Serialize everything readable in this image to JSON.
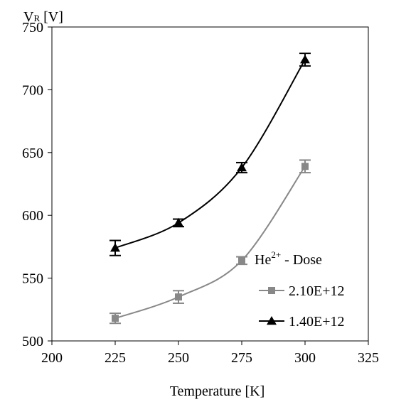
{
  "chart_data": {
    "type": "line",
    "title": "",
    "ylabel": "V",
    "ylabel_sub": "R",
    "ylabel_unit": "[V]",
    "xlabel": "Temperature [K]",
    "xlim": [
      200,
      325
    ],
    "ylim": [
      500,
      750
    ],
    "x_ticks": [
      200,
      225,
      250,
      275,
      300,
      325
    ],
    "y_ticks": [
      500,
      550,
      600,
      650,
      700,
      750
    ],
    "grid": false,
    "legend": {
      "placement": "bottom-right",
      "title": "He",
      "title_sup": "2+",
      "title_suffix": " - Dose"
    },
    "series": [
      {
        "name": "2.10E+12",
        "marker": "square",
        "color": "#888888",
        "x": [
          225,
          250,
          275,
          300
        ],
        "y": [
          518,
          535,
          564,
          639
        ],
        "err": [
          4,
          5,
          3,
          5
        ]
      },
      {
        "name": "1.40E+12",
        "marker": "triangle",
        "color": "#000000",
        "x": [
          225,
          250,
          275,
          300
        ],
        "y": [
          574,
          594,
          638,
          724
        ],
        "err": [
          6,
          3,
          4,
          5
        ]
      }
    ]
  }
}
